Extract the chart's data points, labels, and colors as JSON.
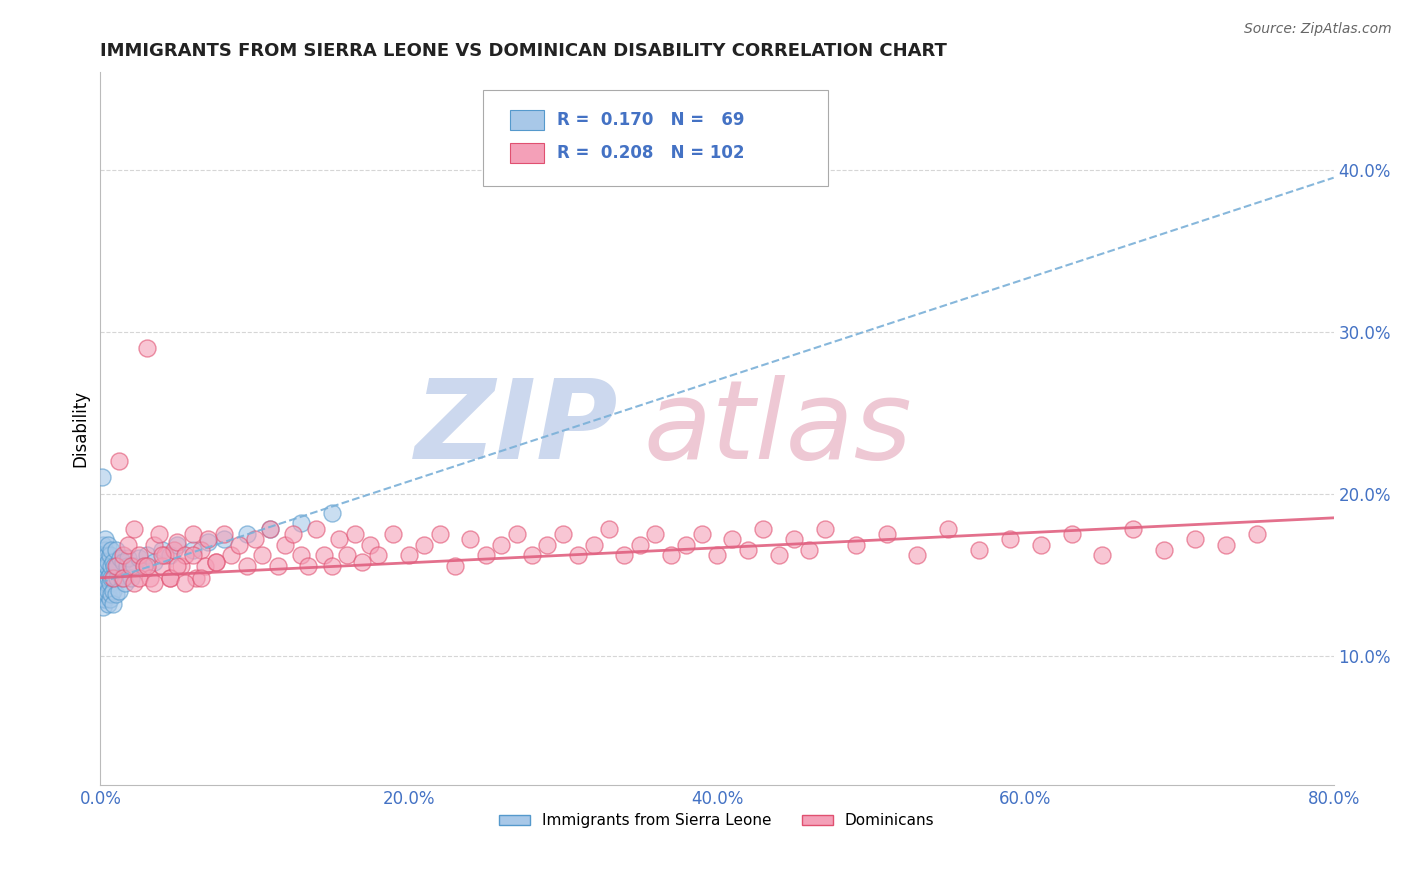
{
  "title": "IMMIGRANTS FROM SIERRA LEONE VS DOMINICAN DISABILITY CORRELATION CHART",
  "source": "Source: ZipAtlas.com",
  "ylabel": "Disability",
  "xlim": [
    0.0,
    0.8
  ],
  "ylim": [
    0.02,
    0.46
  ],
  "yticks": [
    0.1,
    0.2,
    0.3,
    0.4
  ],
  "ytick_labels": [
    "10.0%",
    "20.0%",
    "30.0%",
    "40.0%"
  ],
  "xticks": [
    0.0,
    0.2,
    0.4,
    0.6,
    0.8
  ],
  "xtick_labels": [
    "0.0%",
    "20.0%",
    "40.0%",
    "60.0%",
    "80.0%"
  ],
  "blue_color": "#a8c8e8",
  "pink_color": "#f4a0b8",
  "blue_edge_color": "#5599cc",
  "pink_edge_color": "#e05070",
  "blue_line_color": "#7ab0d8",
  "pink_line_color": "#e06080",
  "grid_color": "#cccccc",
  "axis_label_color": "#4472c4",
  "title_color": "#222222",
  "watermark_zip_color": "#ccd8ee",
  "watermark_atlas_color": "#eec8d4",
  "sl_x": [
    0.001,
    0.001,
    0.001,
    0.001,
    0.002,
    0.002,
    0.002,
    0.002,
    0.002,
    0.002,
    0.002,
    0.003,
    0.003,
    0.003,
    0.003,
    0.003,
    0.003,
    0.003,
    0.004,
    0.004,
    0.004,
    0.004,
    0.004,
    0.005,
    0.005,
    0.005,
    0.005,
    0.005,
    0.006,
    0.006,
    0.006,
    0.006,
    0.007,
    0.007,
    0.007,
    0.007,
    0.008,
    0.008,
    0.008,
    0.009,
    0.009,
    0.01,
    0.01,
    0.011,
    0.011,
    0.012,
    0.013,
    0.014,
    0.015,
    0.016,
    0.017,
    0.018,
    0.02,
    0.022,
    0.025,
    0.028,
    0.03,
    0.035,
    0.04,
    0.045,
    0.05,
    0.06,
    0.07,
    0.08,
    0.095,
    0.11,
    0.13,
    0.15,
    0.001
  ],
  "sl_y": [
    0.145,
    0.152,
    0.138,
    0.162,
    0.148,
    0.135,
    0.158,
    0.142,
    0.168,
    0.13,
    0.155,
    0.14,
    0.165,
    0.148,
    0.158,
    0.135,
    0.172,
    0.145,
    0.15,
    0.138,
    0.162,
    0.145,
    0.155,
    0.14,
    0.168,
    0.132,
    0.158,
    0.148,
    0.135,
    0.162,
    0.15,
    0.145,
    0.138,
    0.155,
    0.148,
    0.165,
    0.14,
    0.158,
    0.132,
    0.148,
    0.155,
    0.138,
    0.165,
    0.148,
    0.155,
    0.14,
    0.16,
    0.148,
    0.158,
    0.145,
    0.155,
    0.16,
    0.148,
    0.155,
    0.16,
    0.155,
    0.162,
    0.158,
    0.165,
    0.162,
    0.168,
    0.165,
    0.17,
    0.172,
    0.175,
    0.178,
    0.182,
    0.188,
    0.21
  ],
  "dom_x": [
    0.008,
    0.01,
    0.012,
    0.015,
    0.015,
    0.018,
    0.02,
    0.022,
    0.022,
    0.025,
    0.028,
    0.03,
    0.032,
    0.035,
    0.038,
    0.04,
    0.042,
    0.045,
    0.048,
    0.05,
    0.052,
    0.055,
    0.06,
    0.062,
    0.065,
    0.068,
    0.07,
    0.075,
    0.08,
    0.085,
    0.09,
    0.095,
    0.1,
    0.105,
    0.11,
    0.115,
    0.12,
    0.125,
    0.13,
    0.135,
    0.14,
    0.145,
    0.15,
    0.155,
    0.16,
    0.165,
    0.17,
    0.175,
    0.18,
    0.19,
    0.2,
    0.21,
    0.22,
    0.23,
    0.24,
    0.25,
    0.26,
    0.27,
    0.28,
    0.29,
    0.3,
    0.31,
    0.32,
    0.33,
    0.34,
    0.35,
    0.36,
    0.37,
    0.38,
    0.39,
    0.4,
    0.41,
    0.42,
    0.43,
    0.44,
    0.45,
    0.46,
    0.47,
    0.49,
    0.51,
    0.53,
    0.55,
    0.57,
    0.59,
    0.61,
    0.63,
    0.65,
    0.67,
    0.69,
    0.71,
    0.73,
    0.75,
    0.025,
    0.03,
    0.035,
    0.04,
    0.045,
    0.05,
    0.055,
    0.06,
    0.065,
    0.075
  ],
  "dom_y": [
    0.148,
    0.155,
    0.22,
    0.162,
    0.148,
    0.168,
    0.155,
    0.145,
    0.178,
    0.162,
    0.155,
    0.29,
    0.148,
    0.168,
    0.175,
    0.155,
    0.162,
    0.148,
    0.165,
    0.17,
    0.155,
    0.162,
    0.175,
    0.148,
    0.165,
    0.155,
    0.172,
    0.158,
    0.175,
    0.162,
    0.168,
    0.155,
    0.172,
    0.162,
    0.178,
    0.155,
    0.168,
    0.175,
    0.162,
    0.155,
    0.178,
    0.162,
    0.155,
    0.172,
    0.162,
    0.175,
    0.158,
    0.168,
    0.162,
    0.175,
    0.162,
    0.168,
    0.175,
    0.155,
    0.172,
    0.162,
    0.168,
    0.175,
    0.162,
    0.168,
    0.175,
    0.162,
    0.168,
    0.178,
    0.162,
    0.168,
    0.175,
    0.162,
    0.168,
    0.175,
    0.162,
    0.172,
    0.165,
    0.178,
    0.162,
    0.172,
    0.165,
    0.178,
    0.168,
    0.175,
    0.162,
    0.178,
    0.165,
    0.172,
    0.168,
    0.175,
    0.162,
    0.178,
    0.165,
    0.172,
    0.168,
    0.175,
    0.148,
    0.155,
    0.145,
    0.162,
    0.148,
    0.155,
    0.145,
    0.162,
    0.148,
    0.158
  ],
  "blue_trendline_x0": 0.0,
  "blue_trendline_y0": 0.145,
  "blue_trendline_x1": 0.8,
  "blue_trendline_y1": 0.395,
  "pink_trendline_x0": 0.0,
  "pink_trendline_y0": 0.148,
  "pink_trendline_x1": 0.8,
  "pink_trendline_y1": 0.185
}
